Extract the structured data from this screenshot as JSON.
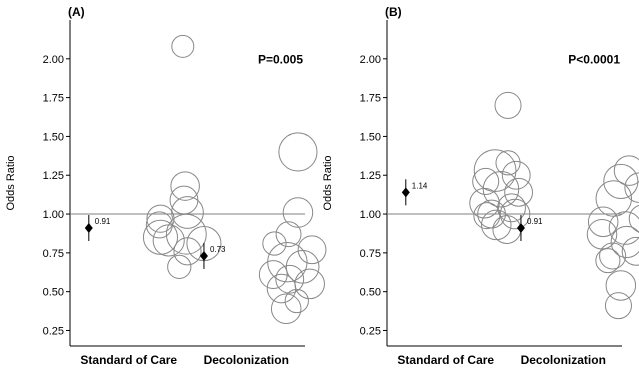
{
  "chart_data": [
    {
      "type": "scatter",
      "panel_label": "(A)",
      "pvalue": "P=0.005",
      "ylabel": "Odds Ratio",
      "xlabel": "",
      "categories": [
        "Standard of Care",
        "Decolonization"
      ],
      "ylim": [
        0.15,
        2.25
      ],
      "yticks": [
        "0.25",
        "0.50",
        "0.75",
        "1.00",
        "1.25",
        "1.50",
        "1.75",
        "2.00"
      ],
      "reference_line": 1.0,
      "grid": false,
      "means": [
        {
          "category": "Standard of Care",
          "value": 0.91,
          "label": "0.91"
        },
        {
          "category": "Decolonization",
          "value": 0.73,
          "label": "0.73"
        }
      ],
      "series": [
        {
          "category": "Standard of Care",
          "points": [
            {
              "x": 0.96,
              "y": 2.08,
              "size": 0.25
            },
            {
              "x": 0.98,
              "y": 1.18,
              "size": 0.42
            },
            {
              "x": 0.97,
              "y": 1.09,
              "size": 0.4
            },
            {
              "x": 1.0,
              "y": 1.01,
              "size": 0.52
            },
            {
              "x": 0.77,
              "y": 0.97,
              "size": 0.38
            },
            {
              "x": 0.76,
              "y": 0.93,
              "size": 0.35
            },
            {
              "x": 0.77,
              "y": 0.85,
              "size": 0.6
            },
            {
              "x": 0.99,
              "y": 0.87,
              "size": 0.82
            },
            {
              "x": 1.14,
              "y": 0.81,
              "size": 0.6
            },
            {
              "x": 0.84,
              "y": 0.83,
              "size": 0.5
            },
            {
              "x": 1.0,
              "y": 0.76,
              "size": 0.38
            },
            {
              "x": 0.93,
              "y": 0.66,
              "size": 0.28
            }
          ]
        },
        {
          "category": "Decolonization",
          "points": [
            {
              "x": 0.94,
              "y": 1.4,
              "size": 0.75
            },
            {
              "x": 0.94,
              "y": 1.01,
              "size": 0.45
            },
            {
              "x": 0.86,
              "y": 0.87,
              "size": 0.32
            },
            {
              "x": 0.74,
              "y": 0.81,
              "size": 0.28
            },
            {
              "x": 1.06,
              "y": 0.77,
              "size": 0.4
            },
            {
              "x": 0.85,
              "y": 0.69,
              "size": 0.8
            },
            {
              "x": 0.98,
              "y": 0.66,
              "size": 0.55
            },
            {
              "x": 0.73,
              "y": 0.61,
              "size": 0.4
            },
            {
              "x": 0.87,
              "y": 0.58,
              "size": 0.4
            },
            {
              "x": 1.04,
              "y": 0.55,
              "size": 0.45
            },
            {
              "x": 0.8,
              "y": 0.52,
              "size": 0.42
            },
            {
              "x": 0.93,
              "y": 0.44,
              "size": 0.28
            },
            {
              "x": 0.84,
              "y": 0.39,
              "size": 0.45
            }
          ]
        }
      ]
    },
    {
      "type": "scatter",
      "panel_label": "(B)",
      "pvalue": "P<0.0001",
      "ylabel": "Odds Ratio",
      "xlabel": "",
      "categories": [
        "Standard of Care",
        "Decolonization"
      ],
      "ylim": [
        0.15,
        2.25
      ],
      "yticks": [
        "0.25",
        "0.50",
        "0.75",
        "1.00",
        "1.25",
        "1.50",
        "1.75",
        "2.00"
      ],
      "reference_line": 1.0,
      "grid": false,
      "means": [
        {
          "category": "Standard of Care",
          "value": 1.14,
          "label": "1.14"
        },
        {
          "category": "Decolonization",
          "value": 0.91,
          "label": "0.91"
        }
      ],
      "series": [
        {
          "category": "Standard of Care",
          "points": [
            {
              "x": 1.03,
              "y": 1.7,
              "size": 0.35
            },
            {
              "x": 1.03,
              "y": 1.33,
              "size": 0.3
            },
            {
              "x": 0.92,
              "y": 1.28,
              "size": 0.9
            },
            {
              "x": 1.1,
              "y": 1.25,
              "size": 0.4
            },
            {
              "x": 0.84,
              "y": 1.21,
              "size": 0.35
            },
            {
              "x": 0.97,
              "y": 1.16,
              "size": 0.65
            },
            {
              "x": 1.12,
              "y": 1.14,
              "size": 0.4
            },
            {
              "x": 0.83,
              "y": 1.07,
              "size": 0.45
            },
            {
              "x": 1.06,
              "y": 1.04,
              "size": 0.4
            },
            {
              "x": 0.89,
              "y": 1.0,
              "size": 0.4
            },
            {
              "x": 1.09,
              "y": 1.0,
              "size": 0.45
            },
            {
              "x": 0.85,
              "y": 0.99,
              "size": 0.35
            },
            {
              "x": 0.93,
              "y": 0.93,
              "size": 0.45
            },
            {
              "x": 1.02,
              "y": 0.9,
              "size": 0.4
            }
          ]
        },
        {
          "category": "Decolonization",
          "points": [
            {
              "x": 1.06,
              "y": 1.28,
              "size": 0.45
            },
            {
              "x": 0.99,
              "y": 1.21,
              "size": 0.6
            },
            {
              "x": 1.15,
              "y": 1.17,
              "size": 0.45
            },
            {
              "x": 0.93,
              "y": 1.1,
              "size": 0.65
            },
            {
              "x": 1.18,
              "y": 0.97,
              "size": 0.4
            },
            {
              "x": 0.84,
              "y": 0.95,
              "size": 0.45
            },
            {
              "x": 1.03,
              "y": 0.91,
              "size": 0.55
            },
            {
              "x": 0.83,
              "y": 0.87,
              "size": 0.45
            },
            {
              "x": 1.04,
              "y": 0.82,
              "size": 0.5
            },
            {
              "x": 0.92,
              "y": 0.73,
              "size": 0.35
            },
            {
              "x": 0.88,
              "y": 0.7,
              "size": 0.3
            },
            {
              "x": 1.12,
              "y": 0.76,
              "size": 0.4
            },
            {
              "x": 0.99,
              "y": 0.54,
              "size": 0.45
            },
            {
              "x": 0.97,
              "y": 0.41,
              "size": 0.35
            }
          ]
        }
      ]
    }
  ]
}
